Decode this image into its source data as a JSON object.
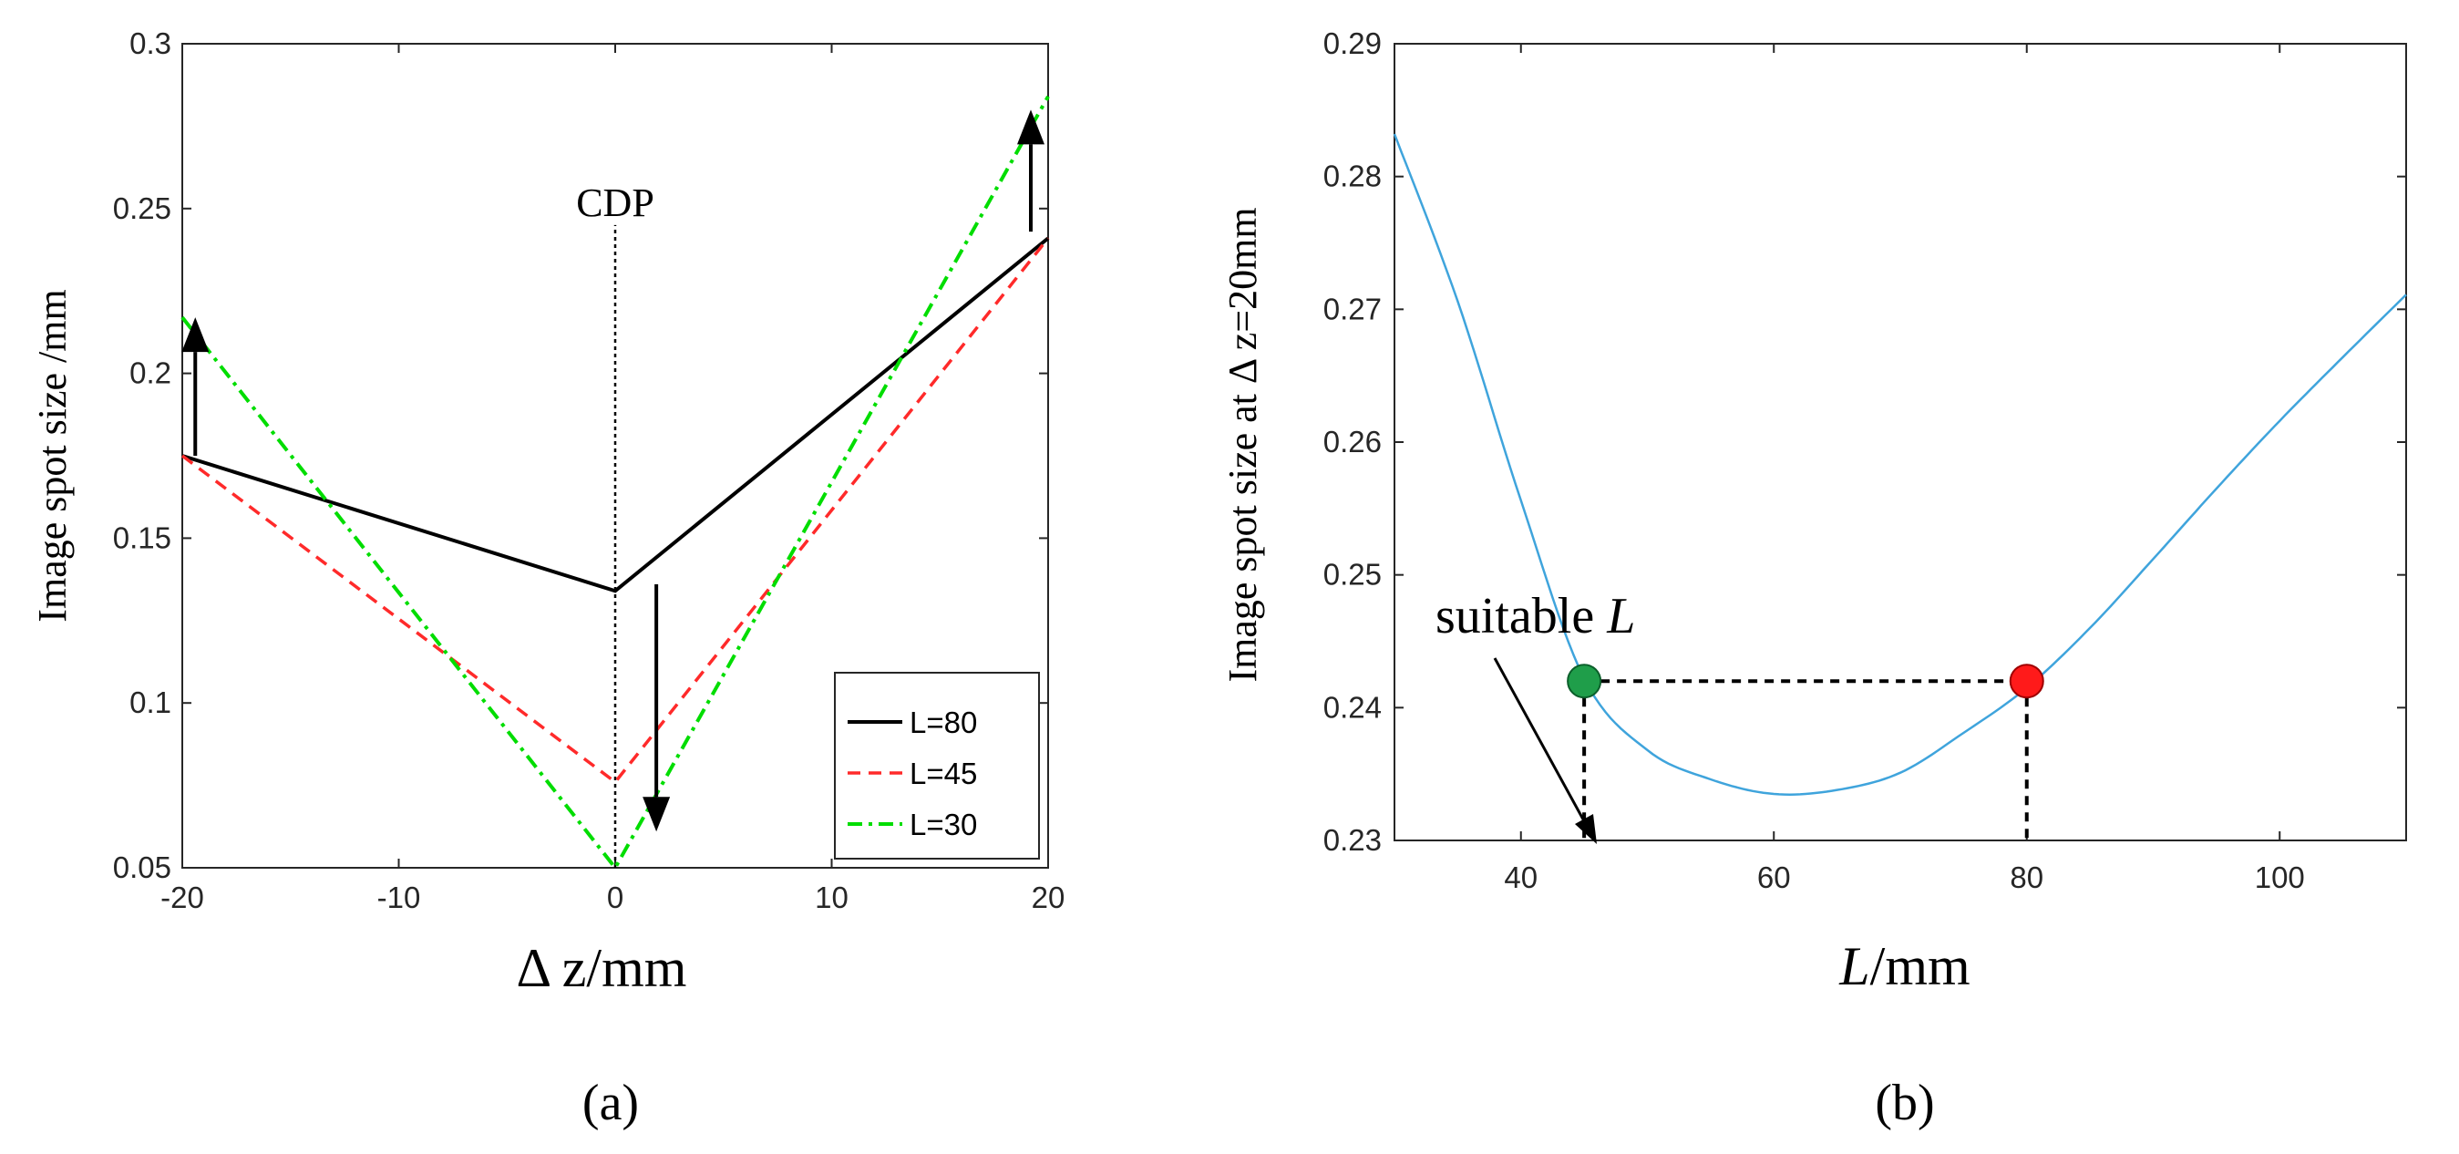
{
  "chart_data": [
    {
      "id": "a",
      "type": "line",
      "panel_label": "(a)",
      "title": "",
      "xlabel": "Δ z/mm",
      "ylabel": "Image spot size /mm",
      "xlim": [
        -20,
        20
      ],
      "ylim": [
        0.05,
        0.3
      ],
      "xticks": [
        -20,
        -10,
        0,
        10,
        20
      ],
      "xtick_labels": [
        "-20",
        "-10",
        "0",
        "10",
        "20"
      ],
      "yticks": [
        0.05,
        0.1,
        0.15,
        0.2,
        0.25,
        0.3
      ],
      "ytick_labels": [
        "0.05",
        "0.1",
        "0.15",
        "0.2",
        "0.25",
        "0.3"
      ],
      "grid": false,
      "legend_position": "bottom-right",
      "series": [
        {
          "name": "L=80",
          "color": "#000000",
          "dash": "solid",
          "x": [
            -20,
            0,
            20
          ],
          "values": [
            0.175,
            0.134,
            0.241
          ]
        },
        {
          "name": "L=45",
          "color": "#ff2a2a",
          "dash": "dashed",
          "x": [
            -20,
            0,
            20
          ],
          "values": [
            0.175,
            0.076,
            0.241
          ]
        },
        {
          "name": "L=30",
          "color": "#00dd00",
          "dash": "dashdot",
          "x": [
            -20,
            0,
            20
          ],
          "values": [
            0.217,
            0.05,
            0.284
          ]
        }
      ],
      "annotations": [
        {
          "text": "CDP",
          "x": 0,
          "y": 0.25,
          "kind": "vertical-dotted-line"
        },
        {
          "kind": "arrow-up",
          "x": -19.4,
          "from": 0.175,
          "to": 0.217
        },
        {
          "kind": "arrow-down",
          "x": 1.9,
          "from": 0.136,
          "to": 0.061
        },
        {
          "kind": "arrow-up",
          "x": 19.2,
          "from": 0.243,
          "to": 0.28
        }
      ]
    },
    {
      "id": "b",
      "type": "line",
      "panel_label": "(b)",
      "title": "",
      "xlabel_italic": "L",
      "xlabel_rest": "/mm",
      "ylabel": "Image spot size at  Δ z=20mm",
      "xlim": [
        30,
        110
      ],
      "ylim": [
        0.23,
        0.29
      ],
      "xticks": [
        40,
        60,
        80,
        100
      ],
      "xtick_labels": [
        "40",
        "60",
        "80",
        "100"
      ],
      "yticks": [
        0.23,
        0.24,
        0.25,
        0.26,
        0.27,
        0.28,
        0.29
      ],
      "ytick_labels": [
        "0.23",
        "0.24",
        "0.25",
        "0.26",
        "0.27",
        "0.28",
        "0.29"
      ],
      "grid": false,
      "series": [
        {
          "name": "spot size",
          "color": "#3fa4dc",
          "x": [
            30,
            35,
            40,
            45,
            50,
            55,
            60,
            65,
            70,
            75,
            80,
            85,
            90,
            95,
            100,
            105,
            110
          ],
          "values": [
            0.2832,
            0.2706,
            0.2556,
            0.2422,
            0.2368,
            0.2346,
            0.2335,
            0.2338,
            0.2351,
            0.2381,
            0.2415,
            0.246,
            0.2512,
            0.2565,
            0.2616,
            0.2664,
            0.2711
          ]
        }
      ],
      "markers": [
        {
          "name": "suitable-point",
          "x": 45,
          "y": 0.242,
          "color": "#1f9e4a"
        },
        {
          "name": "reference-point",
          "x": 80,
          "y": 0.242,
          "color": "#ff1a1a"
        }
      ],
      "annotation_text": "suitable ",
      "annotation_italic": "L"
    }
  ]
}
